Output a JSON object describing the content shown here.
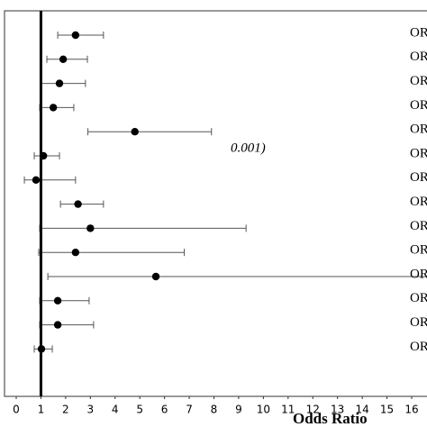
{
  "chart_data": {
    "type": "forest",
    "x_label": "Odds Ratio",
    "annotation": "0.001)",
    "xlim": [
      0,
      16
    ],
    "xticks": [
      0,
      1,
      2,
      3,
      4,
      5,
      6,
      7,
      8,
      9,
      10,
      11,
      12,
      13,
      14,
      15,
      16
    ],
    "reference_line": 1,
    "row_labels": [
      "OR",
      "OR",
      "OR",
      "OR",
      "OR",
      "OR",
      "OR",
      "OR",
      "OR",
      "OR",
      "OR",
      "OR",
      "OR",
      "OR"
    ],
    "values": [
      2.4,
      1.9,
      1.75,
      1.5,
      4.8,
      1.1,
      0.8,
      2.5,
      3.0,
      2.4,
      5.65,
      1.68,
      1.68,
      1.02
    ],
    "lower": [
      1.68,
      1.24,
      1.02,
      0.95,
      2.9,
      0.73,
      0.33,
      1.79,
      0.95,
      0.91,
      1.28,
      0.95,
      0.95,
      0.73
    ],
    "upper": [
      3.53,
      2.88,
      2.8,
      2.33,
      7.9,
      1.75,
      2.4,
      3.53,
      9.3,
      6.8,
      17,
      2.95,
      3.13,
      1.46
    ],
    "color": "#000000"
  }
}
